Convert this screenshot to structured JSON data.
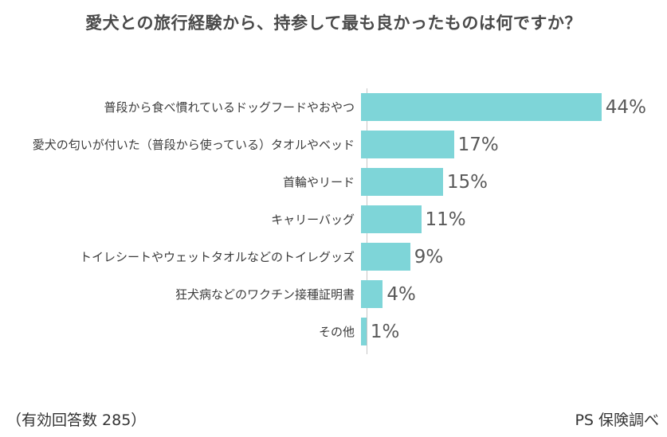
{
  "title": "愛犬との旅行経験から、持参して最も良かったものは何ですか？",
  "chart_data": {
    "type": "bar",
    "orientation": "horizontal",
    "title": "愛犬との旅行経験から、持参して最も良かったものは何ですか？",
    "categories": [
      "普段から食べ慣れているドッグフードやおやつ",
      "愛犬の匂いが付いた（普段から使っている）タオルやベッド",
      "首輪やリード",
      "キャリーバッグ",
      "トイレシートやウェットタオルなどのトイレグッズ",
      "狂犬病などのワクチン接種証明書",
      "その他"
    ],
    "values": [
      44,
      17,
      15,
      11,
      9,
      4,
      1
    ],
    "value_suffix": "%",
    "xlabel": "",
    "ylabel": "",
    "xlim": [
      0,
      55
    ],
    "grid": false,
    "legend": false,
    "bar_color": "#7ed5d8",
    "axis_color": "#c6c6c6",
    "value_label_color": "#595959",
    "category_label_color": "#3c3c3c"
  },
  "footer": {
    "left": "（有効回答数 285）",
    "right": "PS 保険調べ"
  }
}
